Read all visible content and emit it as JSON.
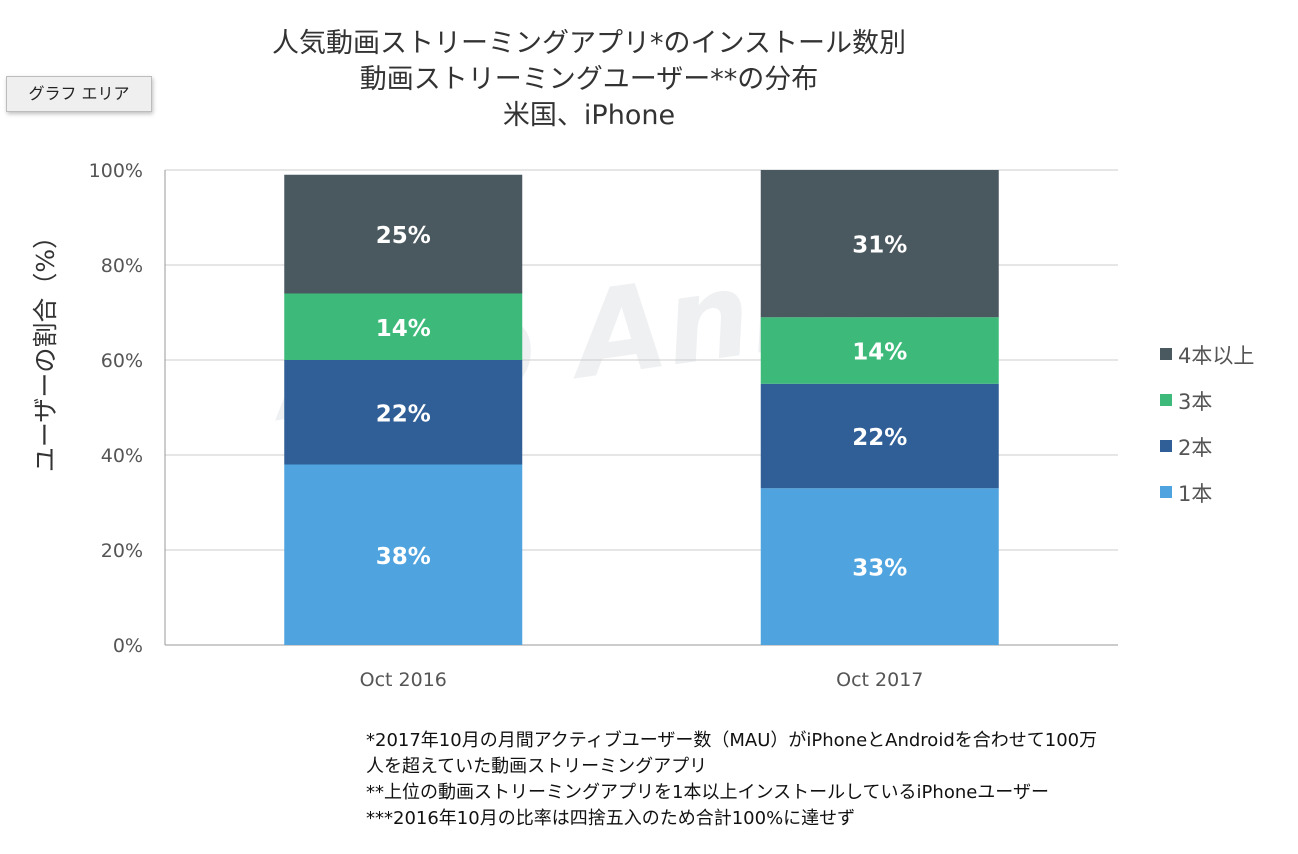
{
  "title_lines": [
    "人気動画ストリーミングアプリ*のインストール数別",
    "動画ストリーミングユーザー**の分布",
    "米国、iPhone"
  ],
  "area_button": "グラフ エリア",
  "footnotes": [
    "*2017年10月の月間アクティブユーザー数（MAU）がiPhoneとAndroidを合わせて100万",
    "人を超えていた動画ストリーミングアプリ",
    "**上位の動画ストリーミングアプリを1本以上インストールしているiPhoneユーザー",
    "***2016年10月の比率は四捨五入のため合計100%に達せず"
  ],
  "colors": {
    "series_1": "#4fa3df",
    "series_2": "#2f5f96",
    "series_3": "#3dba7a",
    "series_4plus": "#4a5960",
    "grid": "#cccccc",
    "axis": "#999999"
  },
  "chart_data": {
    "type": "bar",
    "stacked": true,
    "categories": [
      "Oct 2016",
      "Oct 2017"
    ],
    "series": [
      {
        "name": "1本",
        "values": [
          38,
          33
        ],
        "labels": [
          "38%",
          "33%"
        ]
      },
      {
        "name": "2本",
        "values": [
          22,
          22
        ],
        "labels": [
          "22%",
          "22%"
        ]
      },
      {
        "name": "3本",
        "values": [
          14,
          14
        ],
        "labels": [
          "14%",
          "14%"
        ]
      },
      {
        "name": "4本以上",
        "values": [
          25,
          31
        ],
        "labels": [
          "25%",
          "31%"
        ]
      }
    ],
    "title": "人気動画ストリーミングアプリ*のインストール数別 動画ストリーミングユーザー**の分布 米国、iPhone",
    "ylabel": "ユーザーの割合（%）",
    "ylim": [
      0,
      100
    ],
    "yticks": [
      0,
      20,
      40,
      60,
      80,
      100
    ],
    "ytick_labels": [
      "0%",
      "20%",
      "40%",
      "60%",
      "80%",
      "100%"
    ],
    "grid": true,
    "legend_position": "right",
    "legend_order": [
      "4本以上",
      "3本",
      "2本",
      "1本"
    ],
    "watermark": "App Annie"
  }
}
